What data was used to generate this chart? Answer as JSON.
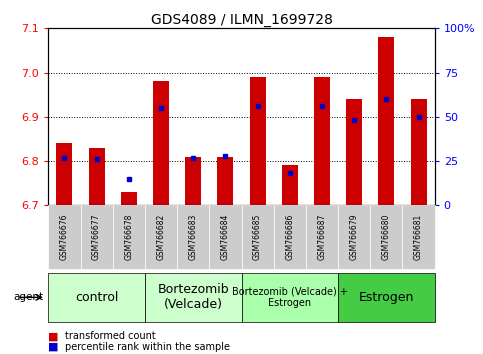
{
  "title": "GDS4089 / ILMN_1699728",
  "samples": [
    "GSM766676",
    "GSM766677",
    "GSM766678",
    "GSM766682",
    "GSM766683",
    "GSM766684",
    "GSM766685",
    "GSM766686",
    "GSM766687",
    "GSM766679",
    "GSM766680",
    "GSM766681"
  ],
  "red_values": [
    6.84,
    6.83,
    6.73,
    6.98,
    6.81,
    6.81,
    6.99,
    6.79,
    6.99,
    6.94,
    7.08,
    6.94
  ],
  "blue_values": [
    27,
    26,
    15,
    55,
    27,
    28,
    56,
    18,
    56,
    48,
    60,
    50
  ],
  "ylim_left": [
    6.7,
    7.1
  ],
  "ylim_right": [
    0,
    100
  ],
  "yticks_left": [
    6.7,
    6.8,
    6.9,
    7.0,
    7.1
  ],
  "yticks_right": [
    0,
    25,
    50,
    75,
    100
  ],
  "agent_groups": [
    {
      "label": "control",
      "start": 0,
      "end": 3,
      "color": "#ccffcc",
      "fontsize": 9
    },
    {
      "label": "Bortezomib\n(Velcade)",
      "start": 3,
      "end": 6,
      "color": "#ccffcc",
      "fontsize": 9
    },
    {
      "label": "Bortezomib (Velcade) +\nEstrogen",
      "start": 6,
      "end": 9,
      "color": "#aaffaa",
      "fontsize": 7
    },
    {
      "label": "Estrogen",
      "start": 9,
      "end": 12,
      "color": "#44cc44",
      "fontsize": 9
    }
  ],
  "bar_width": 0.5,
  "baseline": 6.7,
  "red_color": "#cc0000",
  "blue_color": "#0000cc",
  "bg_color": "#ffffff",
  "plot_bg": "#ffffff",
  "sample_label_bg": "#cccccc",
  "grid_yticks": [
    6.8,
    6.9,
    7.0
  ]
}
